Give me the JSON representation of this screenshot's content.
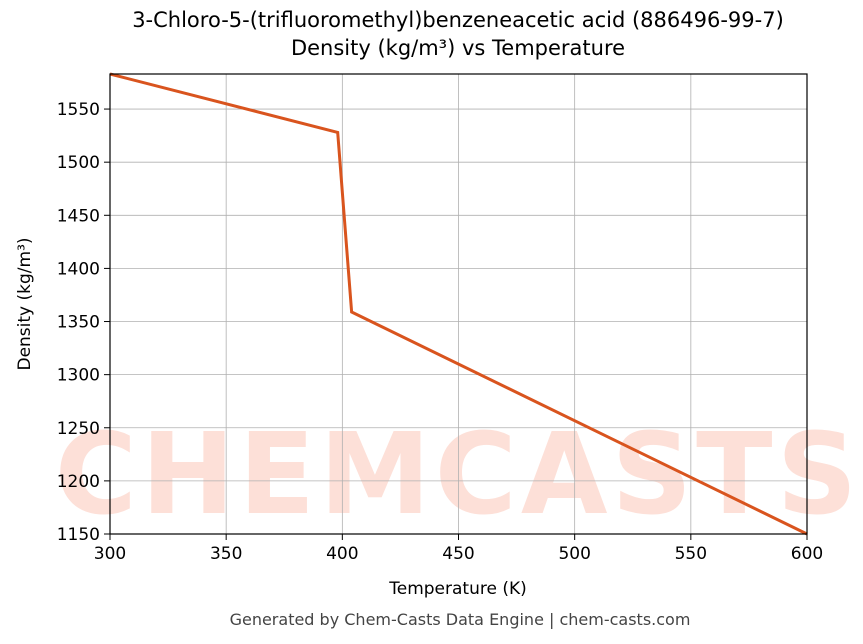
{
  "chart_data": {
    "type": "line",
    "title": "3-Chloro-5-(trifluoromethyl)benzeneacetic acid (886496-99-7)",
    "subtitle": "Density (kg/m³) vs Temperature",
    "x_label": "Temperature (K)",
    "y_label": "Density (kg/m³)",
    "footer": "Generated by Chem-Casts Data Engine | chem-casts.com",
    "watermark": "CHEMCASTS",
    "x": [
      300,
      398,
      404,
      600
    ],
    "series": [
      {
        "name": "Density",
        "color": "#d9541e",
        "values": [
          1583,
          1528,
          1359,
          1150
        ]
      }
    ],
    "xlim": [
      300,
      600
    ],
    "ylim": [
      1150,
      1583
    ],
    "xticks": [
      300,
      350,
      400,
      450,
      500,
      550,
      600
    ],
    "yticks": [
      1150,
      1200,
      1250,
      1300,
      1350,
      1400,
      1450,
      1500,
      1550
    ],
    "grid": true
  }
}
